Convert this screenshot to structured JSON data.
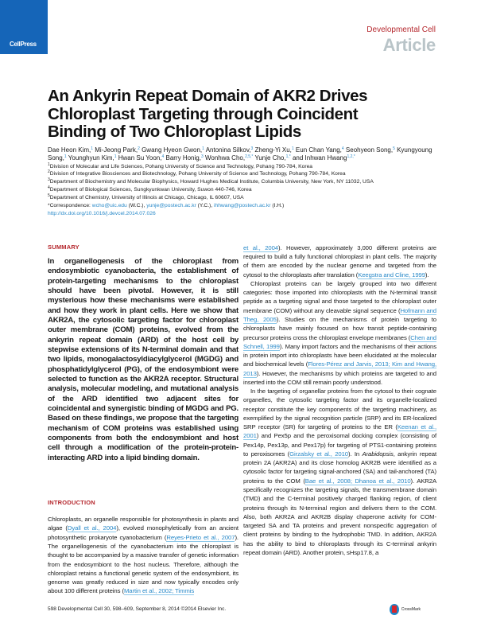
{
  "header": {
    "publisher_logo": "CellPress",
    "journal": "Developmental Cell",
    "article_type": "Article"
  },
  "title": "An Ankyrin Repeat Domain of AKR2 Drives Chloroplast Targeting through Coincident Binding of Two Chloroplast Lipids",
  "authors": [
    {
      "name": "Dae Heon Kim,",
      "sup": "1"
    },
    {
      "name": "Mi-Jeong Park,",
      "sup": "2"
    },
    {
      "name": "Gwang Hyeon Gwon,",
      "sup": "1"
    },
    {
      "name": "Antonina Silkov,",
      "sup": "3"
    },
    {
      "name": "Zheng-Yi Xu,",
      "sup": "1"
    },
    {
      "name": "Eun Chan Yang,",
      "sup": "4"
    },
    {
      "name": "Seohyeon Song,",
      "sup": "5"
    },
    {
      "name": "Kyungyoung Song,",
      "sup": "1"
    },
    {
      "name": "Younghyun Kim,",
      "sup": "1"
    },
    {
      "name": "Hwan Su Yoon,",
      "sup": "4"
    },
    {
      "name": "Barry Honig,",
      "sup": "3"
    },
    {
      "name": "Wonhwa Cho,",
      "sup": "2,5,*"
    },
    {
      "name": "Yunje Cho,",
      "sup": "1,*"
    },
    {
      "name": "and Inhwan Hwang",
      "sup": "1,2,*"
    }
  ],
  "affiliations": [
    {
      "num": "1",
      "text": "Division of Molecular and Life Sciences, Pohang University of Science and Technology, Pohang 790-784, Korea"
    },
    {
      "num": "2",
      "text": "Division of Integrative Biosciences and Biotechnology, Pohang University of Science and Technology, Pohang 790-784, Korea"
    },
    {
      "num": "3",
      "text": "Department of Biochemistry and Molecular Biophysics, Howard Hughes Medical Institute, Columbia University, New York, NY 11032, USA"
    },
    {
      "num": "4",
      "text": "Department of Biological Sciences, Sungkyunkwan University, Suwon 440-746, Korea"
    },
    {
      "num": "5",
      "text": "Department of Chemistry, University of Illinois at Chicago, Chicago, IL 60607, USA"
    }
  ],
  "correspondence": {
    "label": "*Correspondence: ",
    "emails": [
      {
        "email": "wcho@uic.edu",
        "who": " (W.C.), "
      },
      {
        "email": "yunje@postech.ac.kr",
        "who": " (Y.C.), "
      },
      {
        "email": "ihhwang@postech.ac.kr",
        "who": " (I.H.)"
      }
    ],
    "doi": "http://dx.doi.org/10.1016/j.devcel.2014.07.026"
  },
  "summary": {
    "heading": "SUMMARY",
    "text": "In organellogenesis of the chloroplast from endosymbiotic cyanobacteria, the establishment of protein-targeting mechanisms to the chloroplast should have been pivotal. However, it is still mysterious how these mechanisms were established and how they work in plant cells. Here we show that AKR2A, the cytosolic targeting factor for chloroplast outer membrane (COM) proteins, evolved from the ankyrin repeat domain (ARD) of the host cell by stepwise extensions of its N-terminal domain and that two lipids, monogalactosyldiacylglycerol (MGDG) and phosphatidylglycerol (PG), of the endosymbiont were selected to function as the AKR2A receptor. Structural analysis, molecular modeling, and mutational analysis of the ARD identified two adjacent sites for coincidental and synergistic binding of MGDG and PG. Based on these findings, we propose that the targeting mechanism of COM proteins was established using components from both the endosymbiont and host cell through a modification of the protein-protein-interacting ARD into a lipid binding domain."
  },
  "introduction": {
    "heading": "INTRODUCTION",
    "paragraphs": [
      [
        {
          "t": "Chloroplasts, an organelle responsible for photosynthesis in plants and algae ("
        },
        {
          "t": "Dyall et al., 2004",
          "link": true
        },
        {
          "t": "), evolved monophyletically from an ancient photosynthetic prokaryote cyanobacterium ("
        },
        {
          "t": "Reyes-Prieto et al., 2007",
          "link": true
        },
        {
          "t": "). The organellogenesis of the cyanobacterium into the chloroplast is thought to be accompanied by a massive transfer of genetic information from the endosymbiont to the host nucleus. Therefore, although the chloroplast retains a functional genetic system of the endosymbiont, its genome was greatly reduced in size and now typically encodes only about 100 different proteins ("
        },
        {
          "t": "Martin et al., 2002; Timmis",
          "link": true
        }
      ]
    ]
  },
  "right_column": {
    "paragraphs": [
      [
        {
          "t": "et al., 2004",
          "link": true
        },
        {
          "t": "). However, approximately 3,000 different proteins are required to build a fully functional chloroplast in plant cells. The majority of them are encoded by the nuclear genome and targeted from the cytosol to the chloroplasts after translation ("
        },
        {
          "t": "Keegstra and Cline, 1999",
          "link": true
        },
        {
          "t": ")."
        }
      ],
      [
        {
          "t": "Chloroplast proteins can be largely grouped into two different categories: those imported into chloroplasts with the N-terminal transit peptide as a targeting signal and those targeted to the chloroplast outer membrane (COM) without any cleavable signal sequence ("
        },
        {
          "t": "Hofmann and Theg, 2005",
          "link": true
        },
        {
          "t": "). Studies on the mechanisms of protein targeting to chloroplasts have mainly focused on how transit peptide-containing precursor proteins cross the chloroplast envelope membranes ("
        },
        {
          "t": "Chen and Schnell, 1999",
          "link": true
        },
        {
          "t": "). Many import factors and the mechanisms of their actions in protein import into chloroplasts have been elucidated at the molecular and biochemical levels ("
        },
        {
          "t": "Flores-Pérez and Jarvis, 2013; Kim and Hwang, 2013",
          "link": true
        },
        {
          "t": "). However, the mechanisms by which proteins are targeted to and inserted into the COM still remain poorly understood."
        }
      ],
      [
        {
          "t": "In the targeting of organellar proteins from the cytosol to their cognate organelles, the cytosolic targeting factor and its organelle-localized receptor constitute the key components of the targeting machinery, as exemplified by the signal recognition particle (SRP) and its ER-localized SRP receptor (SR) for targeting of proteins to the ER ("
        },
        {
          "t": "Keenan et al., 2001",
          "link": true
        },
        {
          "t": ") and Pex5p and the peroxisomal docking complex (consisting of Pex14p, Pex13p, and Pex17p) for targeting of PTS1-containing proteins to peroxisomes ("
        },
        {
          "t": "Girzalsky et al., 2010",
          "link": true
        },
        {
          "t": "). In "
        },
        {
          "t": "Arabidopsis",
          "italic": true
        },
        {
          "t": ", ankyrin repeat protein 2A (AKR2A) and its close homolog AKR2B were identified as a cytosolic factor for targeting signal-anchored (SA) and tail-anchored (TA) proteins to the COM ("
        },
        {
          "t": "Bae et al., 2008; Dhanoa et al., 2010",
          "link": true
        },
        {
          "t": "). AKR2A specifically recognizes the targeting signals, the transmembrane domain (TMD) and the C-terminal positively charged flanking region, of client proteins through its N-terminal region and delivers them to the COM. Also, both AKR2A and AKR2B display chaperone activity for COM-targeted SA and TA proteins and prevent nonspecific aggregation of client proteins by binding to the hydrophobic TMD. In addition, AKR2A has the ability to bind to chloroplasts through its C-terminal ankyrin repeat domain (ARD). Another protein, sHsp17.8, a"
        }
      ]
    ]
  },
  "footer": {
    "citation": "598  Developmental Cell 30, 598–609, September 8, 2014 ©2014 Elsevier Inc.",
    "crossmark": "CrossMark"
  },
  "colors": {
    "brand_blue": "#1565b8",
    "heading_red": "#b5272d",
    "link_blue": "#2a8ac9",
    "article_gray": "#b9c4c8"
  }
}
